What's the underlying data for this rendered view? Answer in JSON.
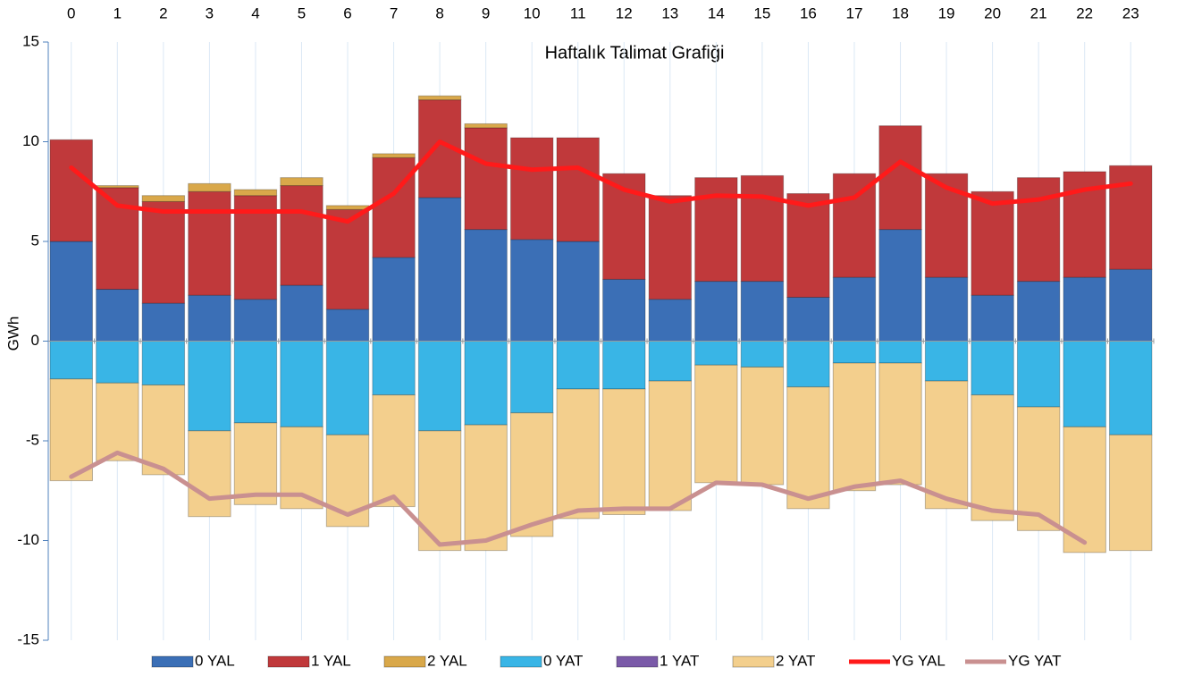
{
  "chart_data": {
    "type": "bar",
    "title": "Haftalık Talimat Grafiği",
    "y_label": "GWh",
    "categories": [
      "0",
      "1",
      "2",
      "3",
      "4",
      "5",
      "6",
      "7",
      "8",
      "9",
      "10",
      "11",
      "12",
      "13",
      "14",
      "15",
      "16",
      "17",
      "18",
      "19",
      "20",
      "21",
      "22",
      "23"
    ],
    "ylim": [
      -15,
      15
    ],
    "yticks": [
      -15,
      -10,
      -5,
      0,
      5,
      10,
      15
    ],
    "grid": true,
    "legend": "bottom",
    "series": [
      {
        "name": "0 YAL",
        "type": "bar",
        "color": "#3b6fb6",
        "values": [
          5.0,
          2.6,
          1.9,
          2.3,
          2.1,
          2.8,
          1.6,
          4.2,
          7.2,
          5.6,
          5.1,
          5.0,
          3.1,
          2.1,
          3.0,
          3.0,
          2.2,
          3.2,
          5.6,
          3.2,
          2.3,
          3.0,
          3.2,
          3.6
        ]
      },
      {
        "name": "1 YAL",
        "type": "bar",
        "color": "#c0393b",
        "values": [
          5.1,
          5.1,
          5.1,
          5.2,
          5.2,
          5.0,
          5.0,
          5.0,
          4.9,
          5.1,
          5.1,
          5.2,
          5.3,
          5.2,
          5.2,
          5.3,
          5.2,
          5.2,
          5.2,
          5.2,
          5.2,
          5.2,
          5.3,
          5.2
        ]
      },
      {
        "name": "2 YAL",
        "type": "bar",
        "color": "#d9a84a",
        "values": [
          0,
          0.1,
          0.3,
          0.4,
          0.3,
          0.4,
          0.2,
          0.2,
          0.2,
          0.2,
          0,
          0,
          0,
          0,
          0,
          0,
          0,
          0,
          0,
          0,
          0,
          0,
          0,
          0
        ]
      },
      {
        "name": "0 YAT",
        "type": "bar",
        "color": "#39b5e6",
        "values": [
          -1.9,
          -2.1,
          -2.2,
          -4.5,
          -4.1,
          -4.3,
          -4.7,
          -2.7,
          -4.5,
          -4.2,
          -3.6,
          -2.4,
          -2.4,
          -2.0,
          -1.2,
          -1.3,
          -2.3,
          -1.1,
          -1.1,
          -2.0,
          -2.7,
          -3.3,
          -4.3,
          -4.7
        ]
      },
      {
        "name": "1 YAT",
        "type": "bar",
        "color": "#7a5aa8",
        "values": [
          0,
          0,
          0,
          0,
          0,
          0,
          0,
          0,
          0,
          0,
          0,
          0,
          0,
          0,
          0,
          0,
          0,
          0,
          0,
          0,
          0,
          0,
          0,
          0
        ]
      },
      {
        "name": "2 YAT",
        "type": "bar",
        "color": "#f3cf8d",
        "values": [
          -5.1,
          -3.9,
          -4.5,
          -4.3,
          -4.1,
          -4.1,
          -4.6,
          -5.6,
          -6.0,
          -6.3,
          -6.2,
          -6.5,
          -6.3,
          -6.5,
          -5.9,
          -5.9,
          -6.1,
          -6.4,
          -6.1,
          -6.4,
          -6.3,
          -6.2,
          -6.3,
          -5.8
        ]
      },
      {
        "name": "YG YAL",
        "type": "line",
        "color": "#ff1a1a",
        "values": [
          8.7,
          6.8,
          6.5,
          6.5,
          6.5,
          6.5,
          6.0,
          7.4,
          10.0,
          8.9,
          8.6,
          8.7,
          7.6,
          7.0,
          7.3,
          7.25,
          6.8,
          7.2,
          9.0,
          7.7,
          6.9,
          7.1,
          7.6,
          7.9
        ]
      },
      {
        "name": "YG YAT",
        "type": "line",
        "color": "#c99090",
        "values": [
          -6.8,
          -5.6,
          -6.4,
          -7.9,
          -7.7,
          -7.7,
          -8.7,
          -7.8,
          -10.2,
          -10.0,
          -9.2,
          -8.5,
          -8.4,
          -8.4,
          -7.1,
          -7.2,
          -7.9,
          -7.3,
          -7.0,
          -7.9,
          -8.5,
          -8.7,
          -10.1,
          null
        ]
      }
    ]
  }
}
